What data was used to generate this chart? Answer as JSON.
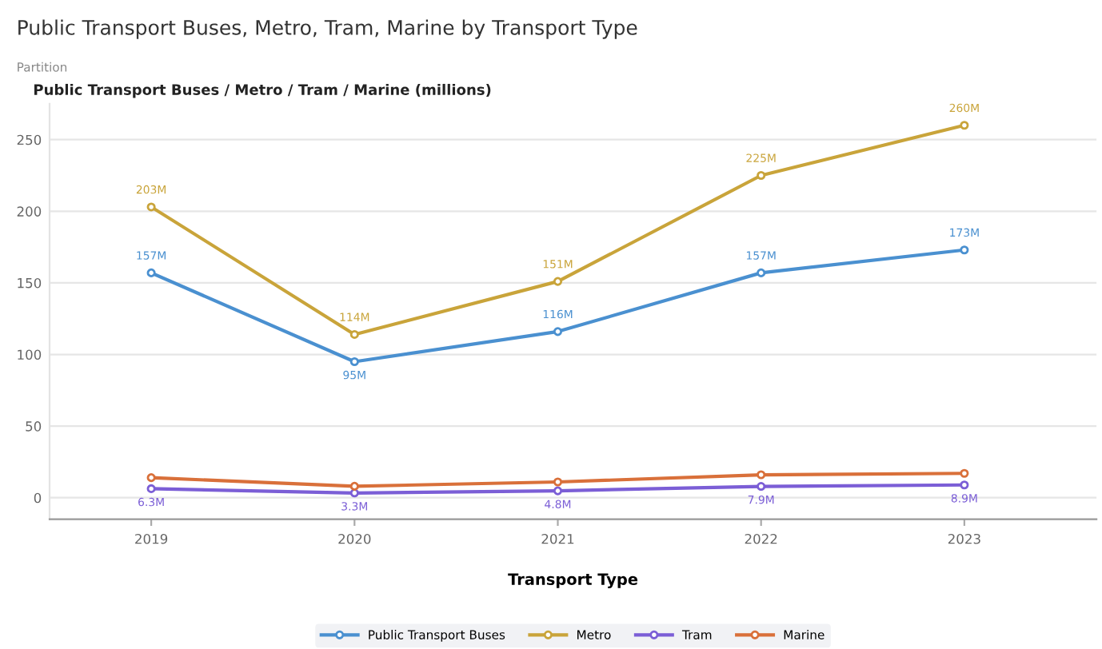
{
  "chart_data": {
    "type": "line",
    "title": "Public Transport Buses, Metro, Tram, Marine by Transport Type",
    "ylabel": "Public Transport Buses / Metro / Tram / Marine (millions)",
    "xlabel": "Transport Type",
    "annotations": [
      "Partition"
    ],
    "categories": [
      "2019",
      "2020",
      "2021",
      "2022",
      "2023"
    ],
    "series": [
      {
        "name": "Public Transport Buses",
        "color": "#4a90d0",
        "values": [
          157,
          95,
          116,
          157,
          173
        ],
        "value_labels": [
          "157M",
          "95M",
          "116M",
          "157M",
          "173M"
        ]
      },
      {
        "name": "Metro",
        "color": "#c9a43a",
        "values": [
          203,
          114,
          151,
          225,
          260
        ],
        "value_labels": [
          "203M",
          "114M",
          "151M",
          "225M",
          "260M"
        ]
      },
      {
        "name": "Tram",
        "color": "#7b5ed6",
        "values": [
          6.3,
          3.3,
          4.8,
          7.9,
          8.9
        ],
        "value_labels": [
          "6.3M",
          "3.3M",
          "4.8M",
          "7.9M",
          "8.9M"
        ]
      },
      {
        "name": "Marine",
        "color": "#d9703a",
        "values": [
          14,
          8,
          11,
          16,
          17
        ]
      }
    ],
    "ylim": [
      -15,
      275
    ],
    "yticks": [
      0,
      50,
      100,
      150,
      200,
      250
    ],
    "grid": "y",
    "legend": "bottom",
    "marker": "circle",
    "line_style": "solid"
  }
}
